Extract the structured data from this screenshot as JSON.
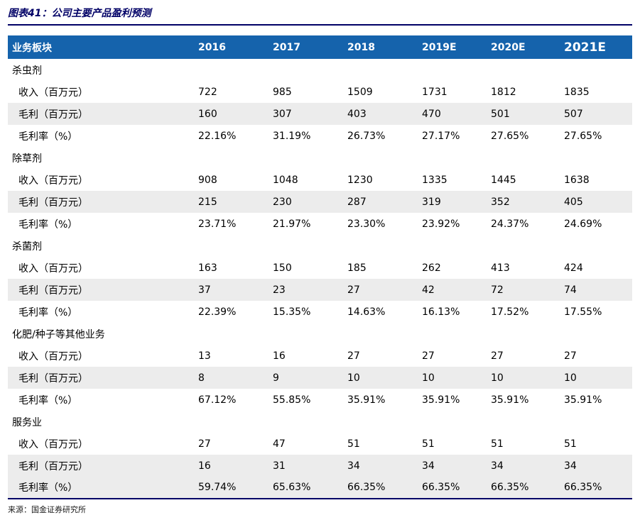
{
  "figure": {
    "title": "图表41：公司主要产品盈利预测",
    "source": "来源：国金证券研究所"
  },
  "colors": {
    "title_navy": "#000066",
    "header_bg": "#1563ac",
    "row_shade": "#ececec"
  },
  "table": {
    "header": [
      "业务板块",
      "2016",
      "2017",
      "2018",
      "2019E",
      "2020E",
      "2021E"
    ],
    "rows": [
      {
        "type": "section",
        "label": "杀虫剂",
        "values": [
          "",
          "",
          "",
          "",
          "",
          ""
        ],
        "shade": false
      },
      {
        "type": "metric",
        "label": "收入（百万元）",
        "values": [
          "722",
          "985",
          "1509",
          "1731",
          "1812",
          "1835"
        ],
        "shade": false
      },
      {
        "type": "metric",
        "label": "毛利（百万元）",
        "values": [
          "160",
          "307",
          "403",
          "470",
          "501",
          "507"
        ],
        "shade": true
      },
      {
        "type": "metric",
        "label": "毛利率（%）",
        "values": [
          "22.16%",
          "31.19%",
          "26.73%",
          "27.17%",
          "27.65%",
          "27.65%"
        ],
        "shade": false
      },
      {
        "type": "section",
        "label": "除草剂",
        "values": [
          "",
          "",
          "",
          "",
          "",
          ""
        ],
        "shade": false
      },
      {
        "type": "metric",
        "label": "收入（百万元）",
        "values": [
          "908",
          "1048",
          "1230",
          "1335",
          "1445",
          "1638"
        ],
        "shade": false
      },
      {
        "type": "metric",
        "label": "毛利（百万元）",
        "values": [
          "215",
          "230",
          "287",
          "319",
          "352",
          "405"
        ],
        "shade": true
      },
      {
        "type": "metric",
        "label": "毛利率（%）",
        "values": [
          "23.71%",
          "21.97%",
          "23.30%",
          "23.92%",
          "24.37%",
          "24.69%"
        ],
        "shade": false
      },
      {
        "type": "section",
        "label": "杀菌剂",
        "values": [
          "",
          "",
          "",
          "",
          "",
          ""
        ],
        "shade": false
      },
      {
        "type": "metric",
        "label": "收入（百万元）",
        "values": [
          "163",
          "150",
          "185",
          "262",
          "413",
          "424"
        ],
        "shade": false
      },
      {
        "type": "metric",
        "label": "毛利（百万元）",
        "values": [
          "37",
          "23",
          "27",
          "42",
          "72",
          "74"
        ],
        "shade": true
      },
      {
        "type": "metric",
        "label": "毛利率（%）",
        "values": [
          "22.39%",
          "15.35%",
          "14.63%",
          "16.13%",
          "17.52%",
          "17.55%"
        ],
        "shade": false
      },
      {
        "type": "section",
        "label": "化肥/种子等其他业务",
        "values": [
          "",
          "",
          "",
          "",
          "",
          ""
        ],
        "shade": false
      },
      {
        "type": "metric",
        "label": "收入（百万元）",
        "values": [
          "13",
          "16",
          "27",
          "27",
          "27",
          "27"
        ],
        "shade": false
      },
      {
        "type": "metric",
        "label": "毛利（百万元）",
        "values": [
          "8",
          "9",
          "10",
          "10",
          "10",
          "10"
        ],
        "shade": true
      },
      {
        "type": "metric",
        "label": "毛利率（%）",
        "values": [
          "67.12%",
          "55.85%",
          "35.91%",
          "35.91%",
          "35.91%",
          "35.91%"
        ],
        "shade": false
      },
      {
        "type": "section",
        "label": "服务业",
        "values": [
          "",
          "",
          "",
          "",
          "",
          ""
        ],
        "shade": false
      },
      {
        "type": "metric",
        "label": "收入（百万元）",
        "values": [
          "27",
          "47",
          "51",
          "51",
          "51",
          "51"
        ],
        "shade": false
      },
      {
        "type": "metric",
        "label": "毛利（百万元）",
        "values": [
          "16",
          "31",
          "34",
          "34",
          "34",
          "34"
        ],
        "shade": true
      },
      {
        "type": "metric",
        "label": "毛利率（%）",
        "values": [
          "59.74%",
          "65.63%",
          "66.35%",
          "66.35%",
          "66.35%",
          "66.35%"
        ],
        "shade": true
      }
    ]
  }
}
